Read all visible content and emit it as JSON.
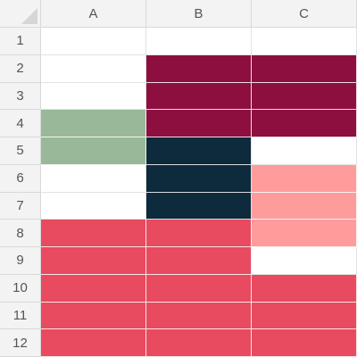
{
  "columns": [
    "A",
    "B",
    "C"
  ],
  "rows": [
    "1",
    "2",
    "3",
    "4",
    "5",
    "6",
    "7",
    "8",
    "9",
    "10",
    "11",
    "12"
  ],
  "cell_fills": [
    [
      "#ffffff",
      "#ffffff",
      "#ffffff"
    ],
    [
      "#ffffff",
      "#8c0f40",
      "#8c0f40"
    ],
    [
      "#ffffff",
      "#8c0f40",
      "#8c0f40"
    ],
    [
      "#99b899",
      "#8c0f40",
      "#8c0f40"
    ],
    [
      "#99b899",
      "#0e2a3d",
      "#ffffff"
    ],
    [
      "#ffffff",
      "#0e2a3d",
      "#fe9c9c"
    ],
    [
      "#ffffff",
      "#0e2a3d",
      "#fe9c9c"
    ],
    [
      "#e84a5f",
      "#e84a5f",
      "#fe9c9c"
    ],
    [
      "#e84a5f",
      "#e84a5f",
      "#ffffff"
    ],
    [
      "#e84a5f",
      "#e84a5f",
      "#e84a5f"
    ],
    [
      "#e84a5f",
      "#e84a5f",
      "#e84a5f"
    ],
    [
      "#e84a5f",
      "#e84a5f",
      "#e84a5f"
    ]
  ]
}
